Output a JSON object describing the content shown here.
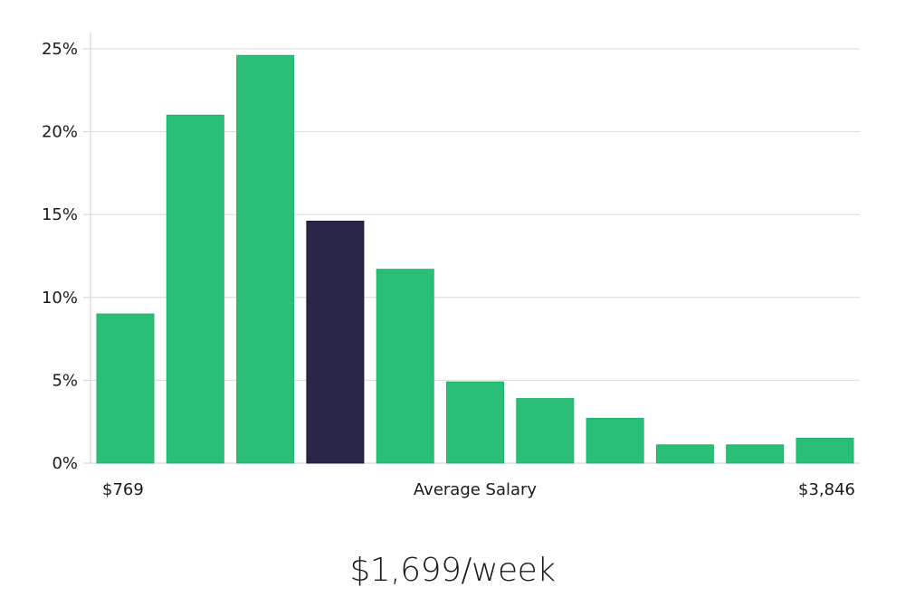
{
  "chart_data": {
    "type": "bar",
    "values": [
      9.0,
      21.0,
      24.6,
      14.6,
      11.7,
      4.9,
      3.9,
      2.7,
      1.1,
      1.1,
      1.5
    ],
    "highlight_index": 3,
    "colors": {
      "bar": "#2abf77",
      "highlight": "#29264a"
    },
    "y_ticks": [
      "0%",
      "5%",
      "10%",
      "15%",
      "20%",
      "25%"
    ],
    "y_tick_values": [
      0,
      5,
      10,
      15,
      20,
      25
    ],
    "ylim": [
      0,
      26
    ],
    "grid": true,
    "xlabel_left": "$769",
    "xlabel_center": "Average Salary",
    "xlabel_right": "$3,846"
  },
  "footer": {
    "average_value": "$1,699/week"
  }
}
